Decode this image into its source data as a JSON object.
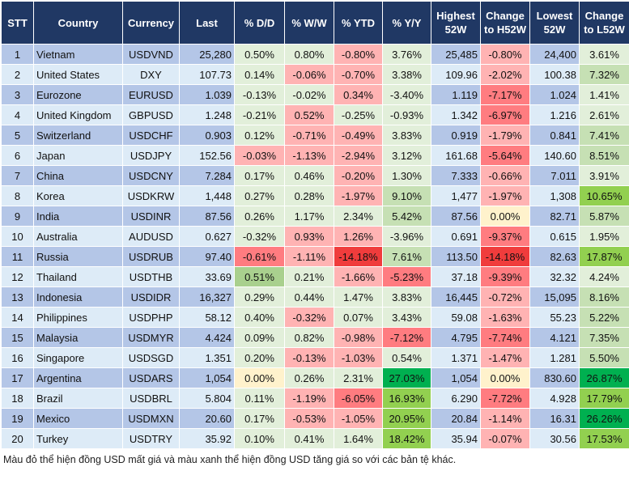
{
  "headers": [
    "STT",
    "Country",
    "Currency",
    "Last",
    "% D/D",
    "% W/W",
    "% YTD",
    "% Y/Y",
    "Highest 52W",
    "Change to H52W",
    "Lowest 52W",
    "Change to L52W"
  ],
  "palette": {
    "a": "#e2efda",
    "b": "#c6e0b4",
    "c": "#a9d08e",
    "d": "#92d050",
    "e": "#00b050",
    "p": "#ffb3b3",
    "q": "#ff7c80",
    "s": "#f03c3c",
    "y": "#fff2cc"
  },
  "rows": [
    {
      "cells": [
        "1",
        "Vietnam",
        "USDVND",
        "25,280",
        "0.50%",
        "0.80%",
        "-0.80%",
        "3.76%",
        "25,485",
        "-0.80%",
        "24,400",
        "3.61%"
      ],
      "colors": "aapapa"
    },
    {
      "cells": [
        "2",
        "United States",
        "DXY",
        "107.73",
        "0.14%",
        "-0.06%",
        "-0.70%",
        "3.38%",
        "109.96",
        "-2.02%",
        "100.38",
        "7.32%"
      ],
      "colors": "appapb"
    },
    {
      "cells": [
        "3",
        "Eurozone",
        "EURUSD",
        "1.039",
        "-0.13%",
        "-0.02%",
        "0.34%",
        "-3.40%",
        "1.119",
        "-7.17%",
        "1.024",
        "1.41%"
      ],
      "colors": "aapaqa"
    },
    {
      "cells": [
        "4",
        "United Kingdom",
        "GBPUSD",
        "1.248",
        "-0.21%",
        "0.52%",
        "-0.25%",
        "-0.93%",
        "1.342",
        "-6.97%",
        "1.216",
        "2.61%"
      ],
      "colors": "apaaqa"
    },
    {
      "cells": [
        "5",
        "Switzerland",
        "USDCHF",
        "0.903",
        "0.12%",
        "-0.71%",
        "-0.49%",
        "3.83%",
        "0.919",
        "-1.79%",
        "0.841",
        "7.41%"
      ],
      "colors": "appapb"
    },
    {
      "cells": [
        "6",
        "Japan",
        "USDJPY",
        "152.56",
        "-0.03%",
        "-1.13%",
        "-2.94%",
        "3.12%",
        "161.68",
        "-5.64%",
        "140.60",
        "8.51%"
      ],
      "colors": "pppaqb"
    },
    {
      "cells": [
        "7",
        "China",
        "USDCNY",
        "7.284",
        "0.17%",
        "0.46%",
        "-0.20%",
        "1.30%",
        "7.333",
        "-0.66%",
        "7.011",
        "3.91%"
      ],
      "colors": "aapapa"
    },
    {
      "cells": [
        "8",
        "Korea",
        "USDKRW",
        "1,448",
        "0.27%",
        "0.28%",
        "-1.97%",
        "9.10%",
        "1,477",
        "-1.97%",
        "1,308",
        "10.65%"
      ],
      "colors": "aapbpd"
    },
    {
      "cells": [
        "9",
        "India",
        "USDINR",
        "87.56",
        "0.26%",
        "1.17%",
        "2.34%",
        "5.42%",
        "87.56",
        "0.00%",
        "82.71",
        "5.87%"
      ],
      "colors": "aaabyb"
    },
    {
      "cells": [
        "10",
        "Australia",
        "AUDUSD",
        "0.627",
        "-0.32%",
        "0.93%",
        "1.26%",
        "-3.96%",
        "0.691",
        "-9.37%",
        "0.615",
        "1.95%"
      ],
      "colors": "appaqa"
    },
    {
      "cells": [
        "11",
        "Russia",
        "USDRUB",
        "97.40",
        "-0.61%",
        "-1.11%",
        "-14.18%",
        "7.61%",
        "113.50",
        "-14.18%",
        "82.63",
        "17.87%"
      ],
      "colors": "qpsbsd"
    },
    {
      "cells": [
        "12",
        "Thailand",
        "USDTHB",
        "33.69",
        "0.51%",
        "0.21%",
        "-1.66%",
        "-5.23%",
        "37.18",
        "-9.39%",
        "32.32",
        "4.24%"
      ],
      "colors": "capqqa"
    },
    {
      "cells": [
        "13",
        "Indonesia",
        "USDIDR",
        "16,327",
        "0.29%",
        "0.44%",
        "1.47%",
        "3.83%",
        "16,445",
        "-0.72%",
        "15,095",
        "8.16%"
      ],
      "colors": "aaaapb"
    },
    {
      "cells": [
        "14",
        "Philippines",
        "USDPHP",
        "58.12",
        "0.40%",
        "-0.32%",
        "0.07%",
        "3.43%",
        "59.08",
        "-1.63%",
        "55.23",
        "5.22%"
      ],
      "colors": "apaapb"
    },
    {
      "cells": [
        "15",
        "Malaysia",
        "USDMYR",
        "4.424",
        "0.09%",
        "0.82%",
        "-0.98%",
        "-7.12%",
        "4.795",
        "-7.74%",
        "4.121",
        "7.35%"
      ],
      "colors": "aapqqb"
    },
    {
      "cells": [
        "16",
        "Singapore",
        "USDSGD",
        "1.351",
        "0.20%",
        "-0.13%",
        "-1.03%",
        "0.54%",
        "1.371",
        "-1.47%",
        "1.281",
        "5.50%"
      ],
      "colors": "appapb"
    },
    {
      "cells": [
        "17",
        "Argentina",
        "USDARS",
        "1,054",
        "0.00%",
        "0.26%",
        "2.31%",
        "27.03%",
        "1,054",
        "0.00%",
        "830.60",
        "26.87%"
      ],
      "colors": "yaaeye"
    },
    {
      "cells": [
        "18",
        "Brazil",
        "USDBRL",
        "5.804",
        "0.11%",
        "-1.19%",
        "-6.05%",
        "16.93%",
        "6.290",
        "-7.72%",
        "4.928",
        "17.79%"
      ],
      "colors": "apqdqd"
    },
    {
      "cells": [
        "19",
        "Mexico",
        "USDMXN",
        "20.60",
        "0.17%",
        "-0.53%",
        "-1.05%",
        "20.95%",
        "20.84",
        "-1.14%",
        "16.31",
        "26.26%"
      ],
      "colors": "appdpe"
    },
    {
      "cells": [
        "20",
        "Turkey",
        "USDTRY",
        "35.92",
        "0.10%",
        "0.41%",
        "1.64%",
        "18.42%",
        "35.94",
        "-0.07%",
        "30.56",
        "17.53%"
      ],
      "colors": "aaadpd"
    }
  ],
  "caption": "Màu đỏ thể hiện đồng USD mất giá và màu xanh thể hiện đồng USD tăng giá so với các bản tệ khác."
}
